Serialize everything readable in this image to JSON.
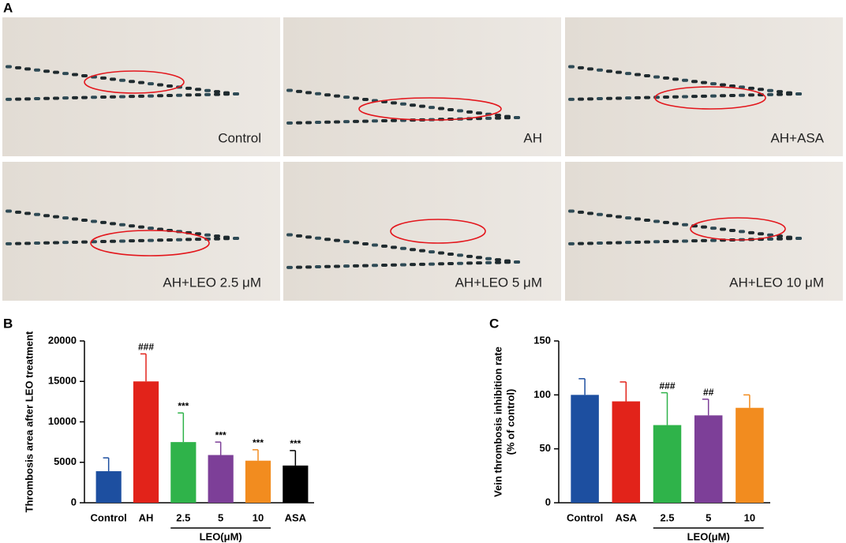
{
  "panels": {
    "label": "A",
    "captions": [
      "Control",
      "AH",
      "AH+ASA",
      "AH+LEO 2.5 μM",
      "AH+LEO 5 μM",
      "AH+LEO 10 μM"
    ]
  },
  "chart_data": [
    {
      "type": "bar",
      "panel_label": "B",
      "ylabel": [
        "Thrombosis area after LEO treatment"
      ],
      "categories": [
        "Control",
        "AH",
        "2.5",
        "5",
        "10",
        "ASA"
      ],
      "group_label": "LEO(μM)",
      "group": [
        2,
        4
      ],
      "values": [
        3900,
        15000,
        7500,
        5900,
        5200,
        4600
      ],
      "errors": [
        1650,
        3400,
        3600,
        1600,
        1350,
        1850
      ],
      "annotations": [
        null,
        "###",
        "***",
        "***",
        "***",
        "***"
      ],
      "colors": [
        "#1d4fa0",
        "#e2231a",
        "#2fb34a",
        "#7d3f98",
        "#f28c1f",
        "#000000"
      ],
      "ylim": [
        0,
        20000
      ],
      "yticks": [
        0,
        5000,
        10000,
        15000,
        20000
      ]
    },
    {
      "type": "bar",
      "panel_label": "C",
      "ylabel": [
        "Vein thrombosis inhibition rate",
        "(% of control)"
      ],
      "categories": [
        "Control",
        "ASA",
        "2.5",
        "5",
        "10"
      ],
      "group_label": "LEO(μM)",
      "group": [
        2,
        4
      ],
      "values": [
        100,
        94,
        72,
        81,
        88
      ],
      "errors": [
        15,
        18,
        30,
        15,
        12
      ],
      "annotations": [
        null,
        null,
        "###",
        "##",
        null
      ],
      "colors": [
        "#1d4fa0",
        "#e2231a",
        "#2fb34a",
        "#7d3f98",
        "#f28c1f"
      ],
      "ylim": [
        0,
        150
      ],
      "yticks": [
        0,
        50,
        100,
        150
      ]
    }
  ]
}
